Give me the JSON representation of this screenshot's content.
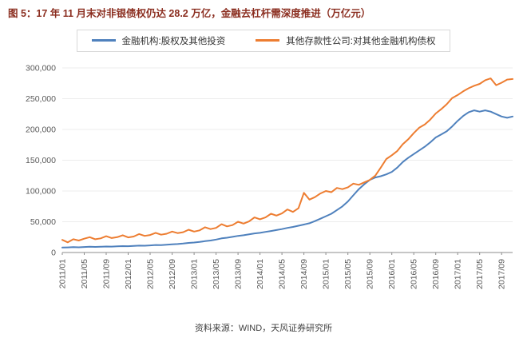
{
  "title": "图 5：17 年 11 月末对非银债权仍达 28.2 万亿，金融去杠杆需深度推进（万亿元）",
  "footer": {
    "source": "资料来源：WIND，天风证券研究所"
  },
  "legend": [
    {
      "label": "金融机构:股权及其他投资",
      "color": "#4F81BD"
    },
    {
      "label": "其他存款性公司:对其他金融机构债权",
      "color": "#ED7D31"
    }
  ],
  "chart_data": {
    "type": "line",
    "title": "图 5：17 年 11 月末对非银债权仍达 28.2 万亿，金融去杠杆需深度推进（万亿元）",
    "xlabel": "",
    "ylabel": "",
    "ylim": [
      0,
      300000
    ],
    "ytick_step": 50000,
    "x_tick_every": 4,
    "grid": true,
    "legend_position": "top",
    "x": [
      "2011/01",
      "2011/02",
      "2011/03",
      "2011/04",
      "2011/05",
      "2011/06",
      "2011/07",
      "2011/08",
      "2011/09",
      "2011/10",
      "2011/11",
      "2011/12",
      "2012/01",
      "2012/02",
      "2012/03",
      "2012/04",
      "2012/05",
      "2012/06",
      "2012/07",
      "2012/08",
      "2012/09",
      "2012/10",
      "2012/11",
      "2012/12",
      "2013/01",
      "2013/02",
      "2013/03",
      "2013/04",
      "2013/05",
      "2013/06",
      "2013/07",
      "2013/08",
      "2013/09",
      "2013/10",
      "2013/11",
      "2013/12",
      "2014/01",
      "2014/02",
      "2014/03",
      "2014/04",
      "2014/05",
      "2014/06",
      "2014/07",
      "2014/08",
      "2014/09",
      "2014/10",
      "2014/11",
      "2014/12",
      "2015/01",
      "2015/02",
      "2015/03",
      "2015/04",
      "2015/05",
      "2015/06",
      "2015/07",
      "2015/08",
      "2015/09",
      "2015/10",
      "2015/11",
      "2015/12",
      "2016/01",
      "2016/02",
      "2016/03",
      "2016/04",
      "2016/05",
      "2016/06",
      "2016/07",
      "2016/08",
      "2016/09",
      "2016/10",
      "2016/11",
      "2016/12",
      "2017/01",
      "2017/02",
      "2017/03",
      "2017/04",
      "2017/05",
      "2017/06",
      "2017/07",
      "2017/08",
      "2017/09",
      "2017/10",
      "2017/11"
    ],
    "series": [
      {
        "name": "金融机构:股权及其他投资",
        "color": "#4F81BD",
        "values": [
          8000,
          8300,
          8700,
          8500,
          8900,
          9300,
          9100,
          9400,
          9800,
          9600,
          10000,
          10400,
          10200,
          10600,
          11200,
          11000,
          11500,
          12200,
          12000,
          12600,
          13400,
          13800,
          14600,
          15600,
          16200,
          17200,
          18500,
          19500,
          21000,
          23000,
          24000,
          25500,
          27000,
          28000,
          29500,
          31000,
          32000,
          33500,
          35000,
          36500,
          38000,
          40000,
          41500,
          43500,
          45500,
          47500,
          51000,
          55000,
          59000,
          63000,
          69000,
          75000,
          83000,
          93000,
          103000,
          111000,
          118000,
          122000,
          124000,
          127000,
          131000,
          138000,
          147000,
          154000,
          160000,
          166000,
          172000,
          179000,
          187000,
          192000,
          197000,
          205000,
          214000,
          222000,
          228000,
          231000,
          229000,
          231000,
          229000,
          225000,
          221000,
          219000,
          221000
        ]
      },
      {
        "name": "其他存款性公司:对其他金融机构债权",
        "color": "#ED7D31",
        "values": [
          20500,
          16500,
          21500,
          19500,
          22500,
          25000,
          21500,
          23000,
          26500,
          23500,
          25000,
          28000,
          24500,
          26000,
          30000,
          27000,
          28500,
          32000,
          29000,
          30500,
          34000,
          31500,
          33000,
          37000,
          34000,
          36000,
          41000,
          38000,
          40000,
          46000,
          42500,
          44500,
          50000,
          47000,
          50500,
          57000,
          54000,
          57000,
          63000,
          60000,
          63500,
          70000,
          66000,
          72000,
          97000,
          86000,
          90000,
          96000,
          100000,
          98000,
          105000,
          103000,
          106000,
          112000,
          110000,
          114000,
          118000,
          125000,
          138000,
          152000,
          158000,
          165000,
          176000,
          184000,
          194000,
          203000,
          208000,
          216000,
          226000,
          233000,
          241000,
          251000,
          256000,
          262000,
          267000,
          271000,
          274000,
          280000,
          283000,
          272000,
          276000,
          281000,
          282000
        ]
      }
    ]
  }
}
